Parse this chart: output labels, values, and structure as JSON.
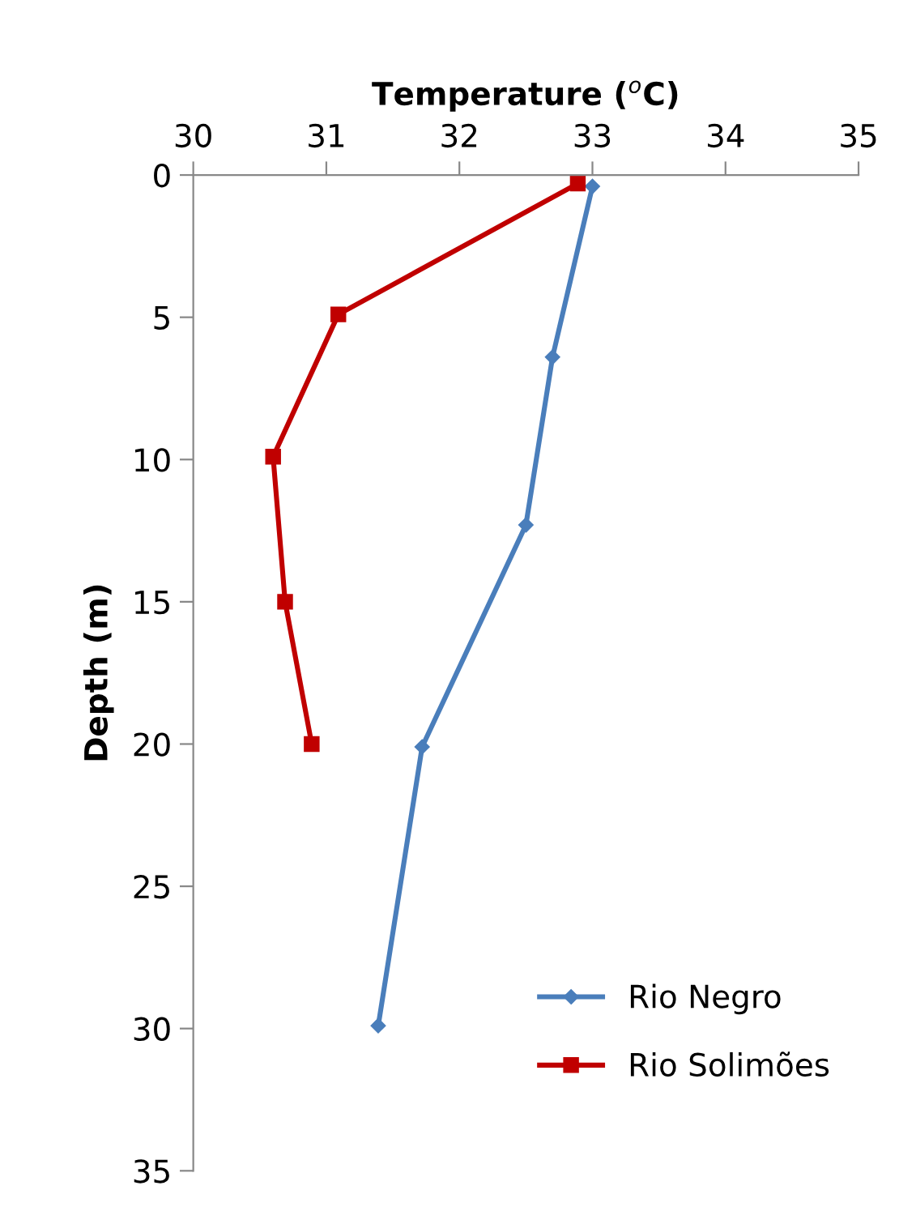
{
  "chart_data": {
    "type": "line",
    "xlabel": "Temperature ($^{o}$C)",
    "ylabel": "Depth (m)",
    "xlim": [
      30,
      35
    ],
    "xticks": [
      30,
      31,
      32,
      33,
      34,
      35
    ],
    "ylim": [
      35,
      0
    ],
    "yticks": [
      0,
      5,
      10,
      15,
      20,
      25,
      30,
      35
    ],
    "grid": false,
    "legend": "bottom right",
    "series": [
      {
        "name": "Rio Negro",
        "color": "#4a7ebb",
        "marker": "diamond",
        "x": [
          33.0,
          32.7,
          32.5,
          31.72,
          31.39
        ],
        "values": [
          0.4,
          6.4,
          12.3,
          20.1,
          29.9
        ]
      },
      {
        "name": "Rio Solimões",
        "color": "#c00000",
        "marker": "square",
        "x": [
          32.89,
          31.09,
          30.6,
          30.69,
          30.89
        ],
        "values": [
          0.3,
          4.9,
          9.9,
          15.0,
          20.0
        ]
      }
    ]
  }
}
